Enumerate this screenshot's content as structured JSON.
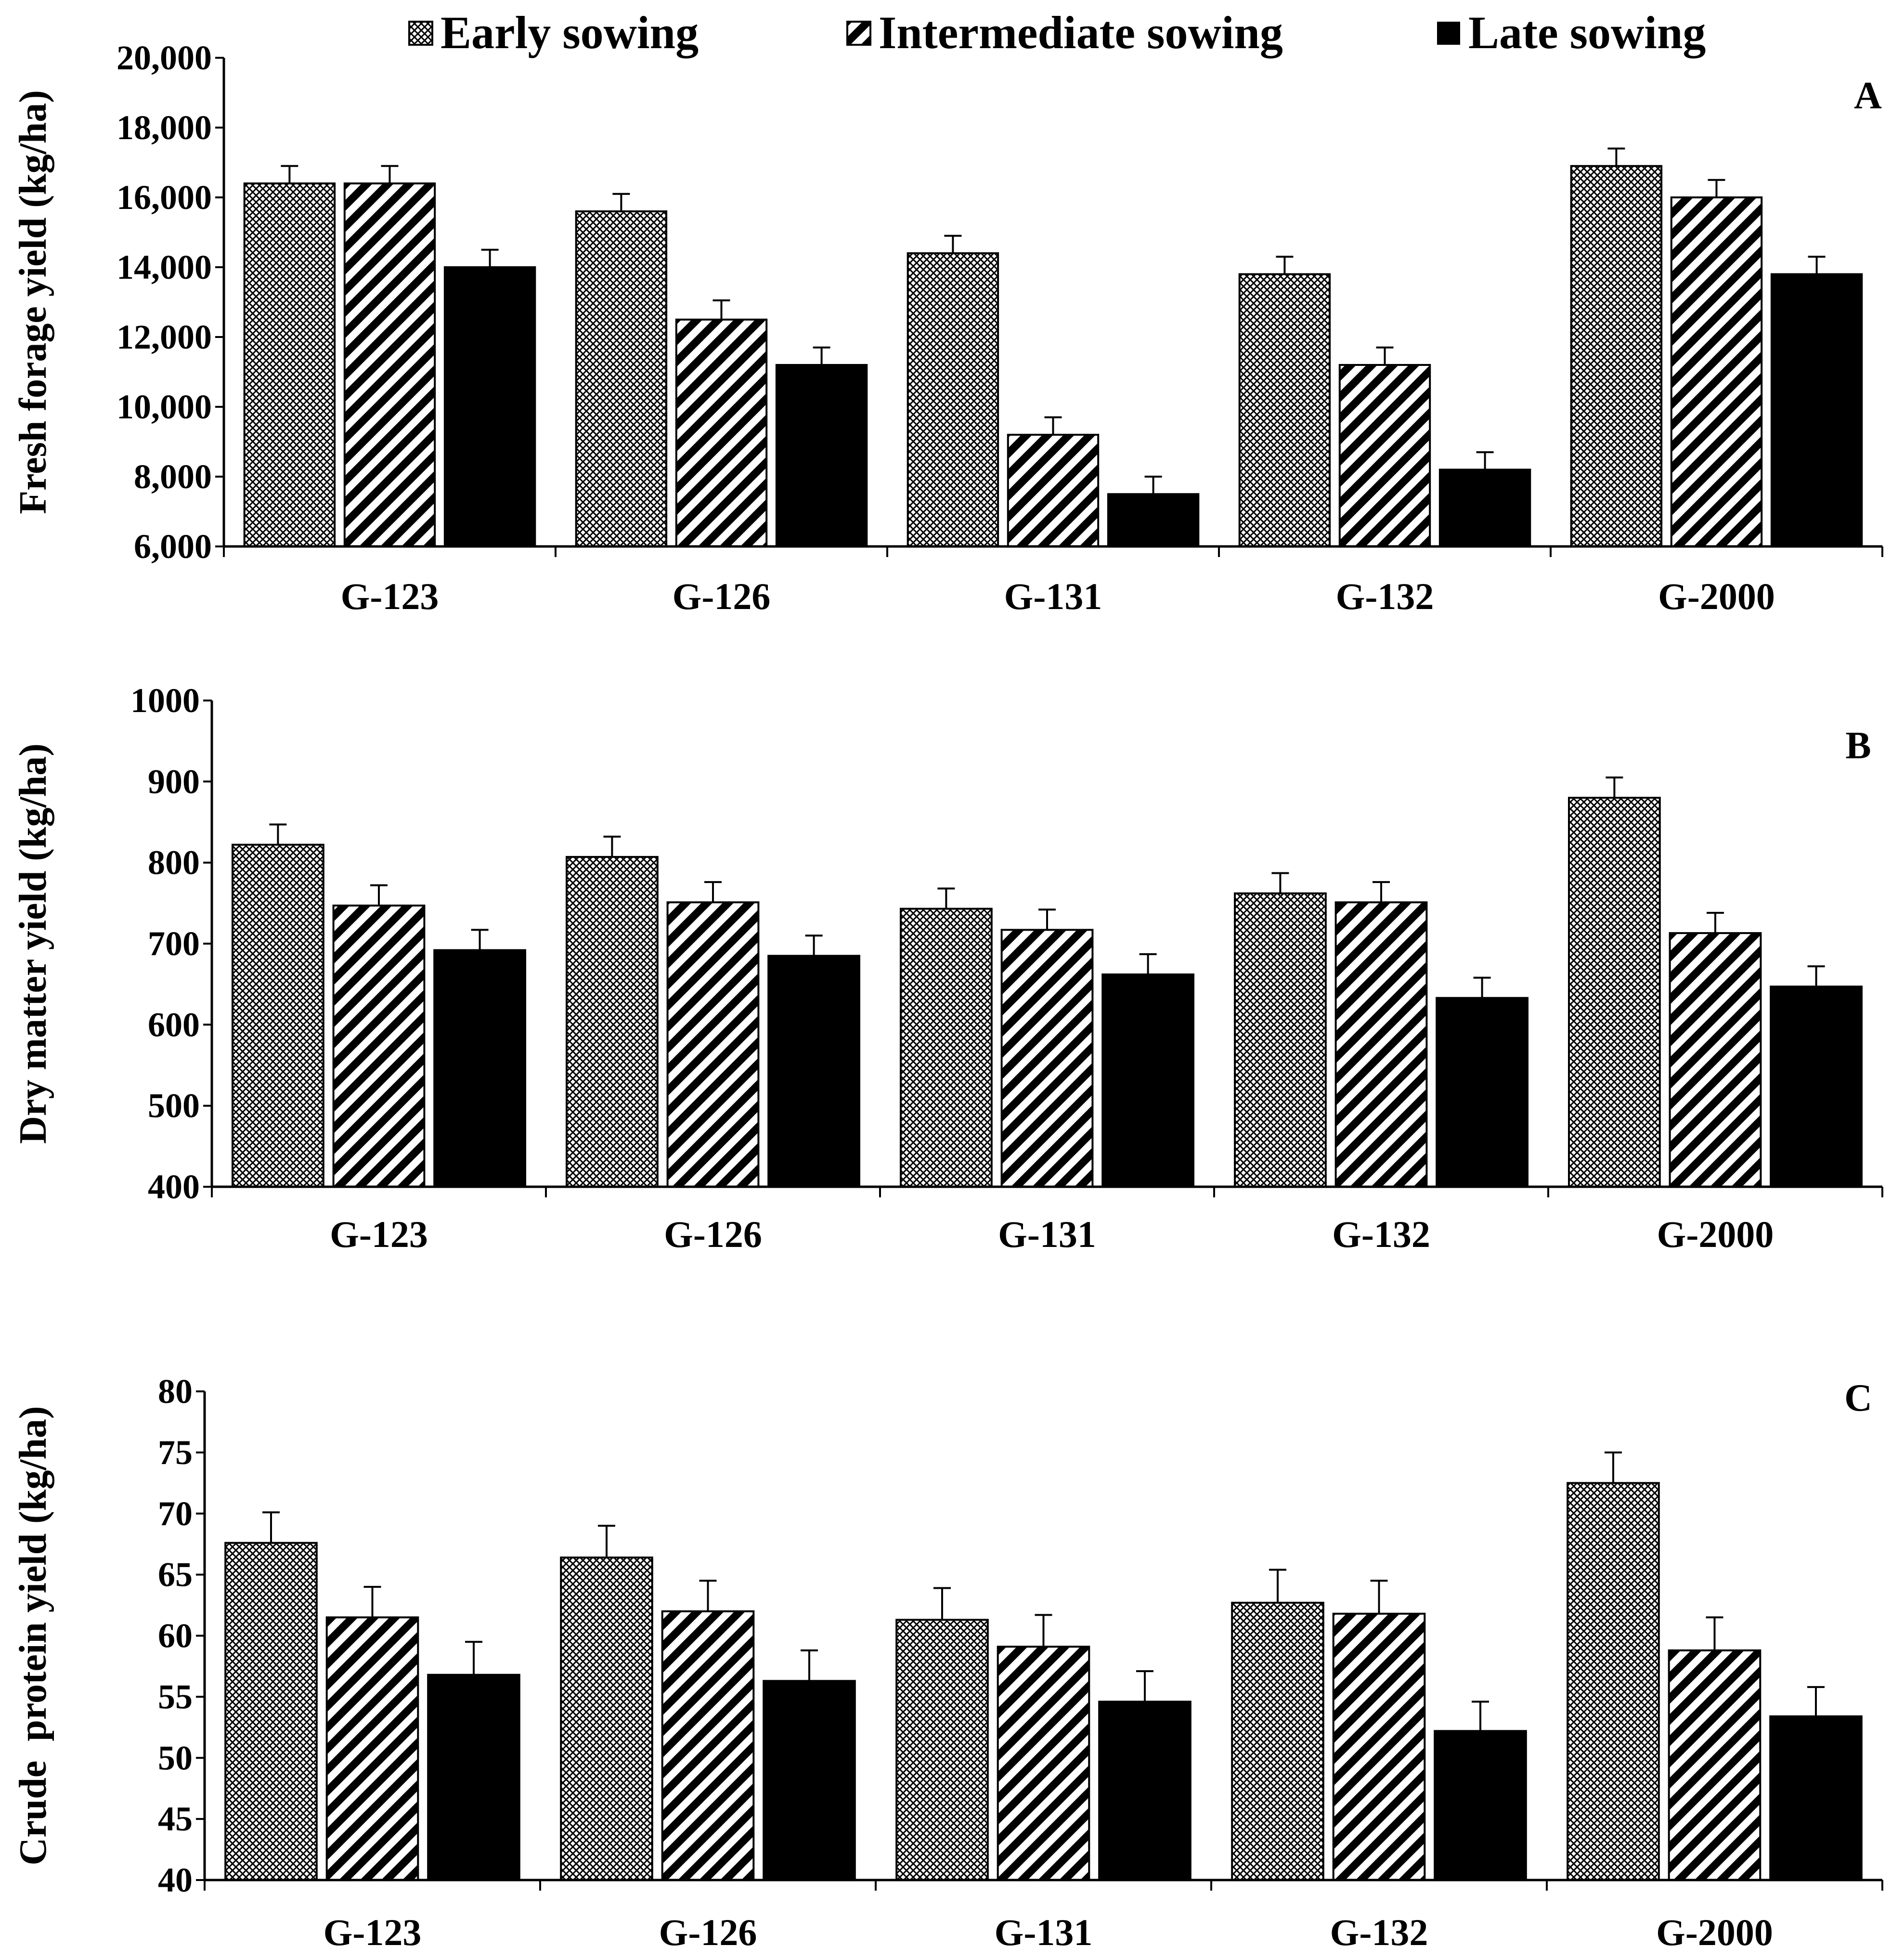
{
  "legend": {
    "items": [
      {
        "name": "Early sowing",
        "pattern": "crosshatch"
      },
      {
        "name": "Intermediate sowing",
        "pattern": "diagonal"
      },
      {
        "name": "Late sowing",
        "pattern": "solid"
      }
    ]
  },
  "colors": {
    "ink": "#000000",
    "background": "#ffffff",
    "early_fill": "#d9d9d9"
  },
  "chart_data": [
    {
      "type": "bar",
      "panel": "A",
      "ylabel": "Fresh forage yield (kg/ha)",
      "ylim": [
        6000,
        20000
      ],
      "yticks": [
        6000,
        8000,
        10000,
        12000,
        14000,
        16000,
        18000,
        20000
      ],
      "ytick_labels": [
        "6,000",
        "8,000",
        "10,000",
        "12,000",
        "14,000",
        "16,000",
        "18,000",
        "20,000"
      ],
      "categories": [
        "G-123",
        "G-126",
        "G-131",
        "G-132",
        "G-2000"
      ],
      "series": [
        {
          "name": "Early sowing",
          "values": [
            16400,
            15600,
            14400,
            13800,
            16900
          ],
          "errors": [
            500,
            500,
            500,
            500,
            500
          ]
        },
        {
          "name": "Intermediate sowing",
          "values": [
            16400,
            12500,
            9200,
            11200,
            16000
          ],
          "errors": [
            500,
            550,
            500,
            500,
            500
          ]
        },
        {
          "name": "Late sowing",
          "values": [
            14000,
            11200,
            7500,
            8200,
            13800
          ],
          "errors": [
            500,
            500,
            500,
            500,
            500
          ]
        }
      ]
    },
    {
      "type": "bar",
      "panel": "B",
      "ylabel": "Dry matter yield (kg/ha)",
      "ylim": [
        400,
        1000
      ],
      "yticks": [
        400,
        500,
        600,
        700,
        800,
        900,
        1000
      ],
      "ytick_labels": [
        "400",
        "500",
        "600",
        "700",
        "800",
        "900",
        "1000"
      ],
      "categories": [
        "G-123",
        "G-126",
        "G-131",
        "G-132",
        "G-2000"
      ],
      "series": [
        {
          "name": "Early sowing",
          "values": [
            822,
            807,
            743,
            762,
            880
          ],
          "errors": [
            25,
            25,
            25,
            25,
            25
          ]
        },
        {
          "name": "Intermediate sowing",
          "values": [
            747,
            751,
            717,
            751,
            713
          ],
          "errors": [
            25,
            25,
            25,
            25,
            25
          ]
        },
        {
          "name": "Late sowing",
          "values": [
            692,
            685,
            662,
            633,
            647
          ],
          "errors": [
            25,
            25,
            25,
            25,
            25
          ]
        }
      ]
    },
    {
      "type": "bar",
      "panel": "C",
      "ylabel": "Crude  protein yield (kg/ha)",
      "ylim": [
        40,
        80
      ],
      "yticks": [
        40,
        45,
        50,
        55,
        60,
        65,
        70,
        75,
        80
      ],
      "ytick_labels": [
        "40",
        "45",
        "50",
        "55",
        "60",
        "65",
        "70",
        "75",
        "80"
      ],
      "categories": [
        "G-123",
        "G-126",
        "G-131",
        "G-132",
        "G-2000"
      ],
      "series": [
        {
          "name": "Early sowing",
          "values": [
            67.6,
            66.4,
            61.3,
            62.7,
            72.5
          ],
          "errors": [
            2.5,
            2.6,
            2.6,
            2.7,
            2.5
          ]
        },
        {
          "name": "Intermediate sowing",
          "values": [
            61.5,
            62.0,
            59.1,
            61.8,
            58.8
          ],
          "errors": [
            2.5,
            2.5,
            2.6,
            2.7,
            2.7
          ]
        },
        {
          "name": "Late sowing",
          "values": [
            56.8,
            56.3,
            54.6,
            52.2,
            53.4
          ],
          "errors": [
            2.7,
            2.5,
            2.5,
            2.4,
            2.4
          ]
        }
      ]
    }
  ]
}
